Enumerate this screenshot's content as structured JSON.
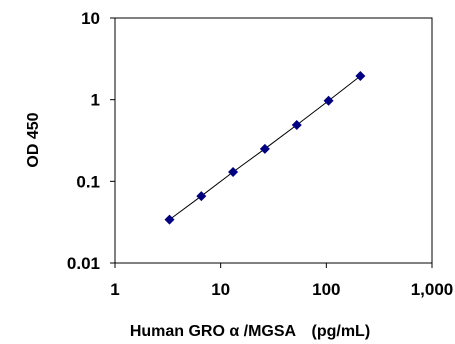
{
  "chart_data": {
    "type": "scatter",
    "title": "",
    "xlabel": "Human GRO α /MGSA　(pg/mL)",
    "ylabel": "OD 450",
    "x_scale": "log",
    "y_scale": "log",
    "xlim": [
      1,
      1000
    ],
    "ylim": [
      0.01,
      10
    ],
    "x_ticks": [
      1,
      10,
      100,
      1000
    ],
    "x_tick_labels": [
      "1",
      "10",
      "100",
      "1,000"
    ],
    "y_ticks": [
      0.01,
      0.1,
      1,
      10
    ],
    "y_tick_labels": [
      "0.01",
      "0.1",
      "1",
      "10"
    ],
    "grid": false,
    "legend": "none",
    "marker": "diamond",
    "marker_color": "#000080",
    "line_color": "#000000",
    "series": [
      {
        "x": [
          3.28,
          6.56,
          13.1,
          26.2,
          52.5,
          105,
          210
        ],
        "y": [
          0.034,
          0.066,
          0.13,
          0.25,
          0.49,
          0.97,
          1.95
        ]
      }
    ]
  }
}
